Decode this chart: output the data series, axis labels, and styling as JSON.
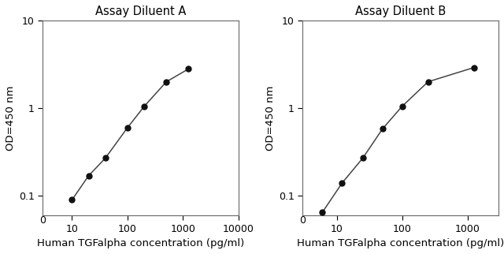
{
  "chart_A": {
    "title": "Assay Diluent A",
    "x": [
      10,
      20,
      40,
      100,
      200,
      500,
      1250
    ],
    "y": [
      0.09,
      0.17,
      0.27,
      0.6,
      1.05,
      2.0,
      2.8
    ],
    "xlabel": "Human TGFalpha concentration (pg/ml)",
    "ylabel": "OD=450 nm",
    "xlim": [
      3,
      10000
    ],
    "ylim": [
      0.06,
      10
    ],
    "xticks": [
      10,
      100,
      1000,
      10000
    ],
    "xtick_labels": [
      "10",
      "100",
      "1000",
      "10000"
    ],
    "yticks": [
      0.1,
      1,
      10
    ],
    "ytick_labels": [
      "0.1",
      "1",
      "10"
    ]
  },
  "chart_B": {
    "title": "Assay Diluent B",
    "x": [
      6,
      12,
      25,
      50,
      100,
      250,
      1250
    ],
    "y": [
      0.065,
      0.14,
      0.27,
      0.58,
      1.05,
      2.0,
      2.9
    ],
    "xlabel": "Human TGFalpha concentration (pg/ml)",
    "ylabel": "OD=450 nm",
    "xlim": [
      3,
      3000
    ],
    "ylim": [
      0.06,
      10
    ],
    "xticks": [
      10,
      100,
      1000
    ],
    "xtick_labels": [
      "10",
      "100",
      "1000"
    ],
    "yticks": [
      0.1,
      1,
      10
    ],
    "ytick_labels": [
      "0.1",
      "1",
      "10"
    ]
  },
  "line_color": "#444444",
  "marker_color": "#111111",
  "bg_color": "#ffffff",
  "title_fontsize": 10.5,
  "label_fontsize": 9.5,
  "tick_fontsize": 9
}
